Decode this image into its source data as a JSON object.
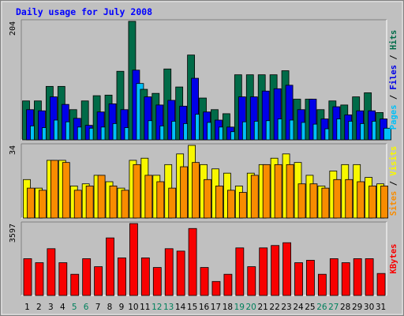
{
  "chart_data": [
    {
      "type": "bar",
      "title": "Daily usage for July 2008",
      "max_tick_label": "204",
      "categories": [
        "1",
        "2",
        "3",
        "4",
        "5",
        "6",
        "7",
        "8",
        "9",
        "10",
        "11",
        "12",
        "13",
        "14",
        "15",
        "16",
        "17",
        "18",
        "19",
        "20",
        "21",
        "22",
        "23",
        "24",
        "25",
        "26",
        "27",
        "28",
        "29",
        "30",
        "31"
      ],
      "weekend_days": [
        "5",
        "6",
        "12",
        "13",
        "19",
        "20",
        "26",
        "27"
      ],
      "ylim": [
        0,
        204
      ],
      "series": [
        {
          "name": "Hits",
          "color": "#006B48",
          "values": [
            67,
            67,
            92,
            92,
            52,
            67,
            76,
            77,
            118,
            204,
            87,
            80,
            122,
            91,
            146,
            72,
            52,
            45,
            112,
            112,
            112,
            112,
            119,
            70,
            70,
            52,
            67,
            60,
            74,
            81,
            47
          ]
        },
        {
          "name": "Files",
          "color": "#0000E8",
          "values": [
            52,
            50,
            74,
            61,
            37,
            25,
            48,
            62,
            52,
            120,
            74,
            60,
            68,
            58,
            106,
            48,
            34,
            22,
            74,
            74,
            84,
            88,
            94,
            52,
            70,
            36,
            57,
            43,
            50,
            50,
            36
          ]
        },
        {
          "name": "Pages",
          "color": "#00C0F8",
          "values": [
            24,
            21,
            34,
            31,
            22,
            20,
            22,
            28,
            21,
            97,
            33,
            24,
            32,
            28,
            44,
            30,
            22,
            14,
            31,
            32,
            33,
            36,
            34,
            30,
            27,
            19,
            36,
            32,
            28,
            32,
            20
          ]
        }
      ],
      "legend": [
        "Pages",
        "Files",
        "Hits"
      ],
      "legend_position": "right"
    },
    {
      "type": "bar",
      "max_tick_label": "34",
      "categories": [
        "1",
        "2",
        "3",
        "4",
        "5",
        "6",
        "7",
        "8",
        "9",
        "10",
        "11",
        "12",
        "13",
        "14",
        "15",
        "16",
        "17",
        "18",
        "19",
        "20",
        "21",
        "22",
        "23",
        "24",
        "25",
        "26",
        "27",
        "28",
        "29",
        "30",
        "31"
      ],
      "ylim": [
        0,
        34
      ],
      "series": [
        {
          "name": "Visits",
          "color": "#F8F800",
          "values": [
            18,
            14,
            27,
            27,
            15,
            16,
            20,
            17,
            14,
            27,
            28,
            20,
            25,
            30,
            34,
            25,
            23,
            21,
            15,
            21,
            25,
            28,
            30,
            26,
            20,
            15,
            22,
            25,
            25,
            19,
            16
          ]
        },
        {
          "name": "Sites",
          "color": "#F88C00",
          "values": [
            14,
            13,
            27,
            26,
            13,
            15,
            20,
            15,
            13,
            25,
            20,
            17,
            14,
            24,
            26,
            18,
            15,
            13,
            12,
            20,
            25,
            25,
            25,
            16,
            16,
            14,
            18,
            18,
            17,
            15,
            15
          ]
        }
      ],
      "legend": [
        "Sites",
        "Visits"
      ],
      "legend_position": "right"
    },
    {
      "type": "bar",
      "max_tick_label": "3597",
      "categories": [
        "1",
        "2",
        "3",
        "4",
        "5",
        "6",
        "7",
        "8",
        "9",
        "10",
        "11",
        "12",
        "13",
        "14",
        "15",
        "16",
        "17",
        "18",
        "19",
        "20",
        "21",
        "22",
        "23",
        "24",
        "25",
        "26",
        "27",
        "28",
        "29",
        "30",
        "31"
      ],
      "ylim": [
        0,
        3597
      ],
      "series": [
        {
          "name": "KBytes",
          "color": "#F80000",
          "values": [
            1840,
            1640,
            2340,
            1640,
            1060,
            1840,
            1440,
            2880,
            1880,
            3597,
            1880,
            1400,
            2340,
            2220,
            3350,
            1400,
            700,
            1060,
            2380,
            1440,
            2380,
            2500,
            2640,
            1640,
            1760,
            1060,
            1840,
            1640,
            1840,
            1840,
            1100
          ]
        }
      ],
      "legend": [
        "KBytes"
      ],
      "legend_position": "right"
    }
  ],
  "colors": {
    "background": "#C0C0C0",
    "title_color": "#0000FF",
    "axis_text": "#000000",
    "weekend_day": "#00805C"
  }
}
